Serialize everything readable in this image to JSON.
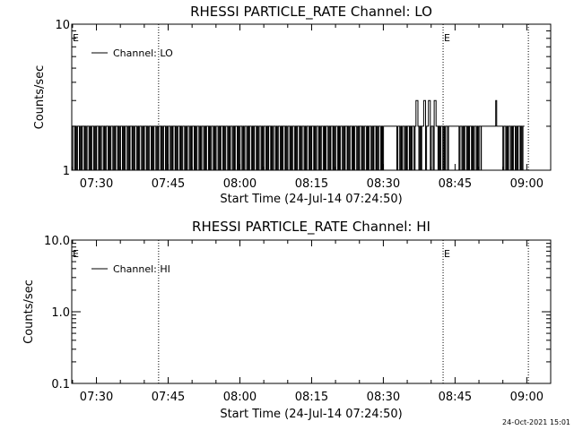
{
  "footer": {
    "timestamp": "24-Oct-2021 15:01"
  },
  "chart_data": [
    {
      "type": "line",
      "title": "RHESSI PARTICLE_RATE Channel: LO",
      "xlabel": "Start Time (24-Jul-14 07:24:50)",
      "ylabel": "Counts/sec",
      "yscale": "log",
      "ylim": [
        1,
        10
      ],
      "yticks": [
        {
          "value": 1,
          "label": "1"
        },
        {
          "value": 10,
          "label": "10"
        }
      ],
      "xlim": [
        "07:24:50",
        "09:05:00"
      ],
      "xticks": [
        "07:30",
        "07:45",
        "08:00",
        "08:15",
        "08:30",
        "08:45",
        "09:00"
      ],
      "legend": {
        "position": "top-left",
        "entries": [
          "Channel: LO"
        ]
      },
      "markers": [
        {
          "time": "07:24:50",
          "label": "E"
        },
        {
          "time": "08:42:30",
          "label": "E"
        }
      ],
      "vlines": [
        "07:43:00",
        "08:42:30",
        "09:00:20"
      ],
      "series": [
        {
          "name": "Channel: LO",
          "pattern": [
            [
              "07:24:50",
              "08:50:30",
              "alternating",
              1,
              2
            ],
            [
              "08:50:30",
              "08:55:00",
              "constant",
              2,
              2
            ],
            [
              "08:55:00",
              "08:59:30",
              "alternating",
              1,
              2
            ]
          ],
          "spikes": [
            [
              "08:37:00",
              3
            ],
            [
              "08:38:30",
              3
            ],
            [
              "08:39:30",
              3
            ],
            [
              "08:40:40",
              3
            ],
            [
              "08:53:30",
              3
            ]
          ],
          "gaps": [
            [
              "08:30:20",
              "08:32:40"
            ],
            [
              "08:43:50",
              "08:45:40"
            ],
            [
              "08:59:30",
              "09:05:00"
            ]
          ]
        }
      ]
    },
    {
      "type": "line",
      "title": "RHESSI PARTICLE_RATE Channel: HI",
      "xlabel": "Start Time (24-Jul-14 07:24:50)",
      "ylabel": "Counts/sec",
      "yscale": "log",
      "ylim": [
        0.1,
        10
      ],
      "yticks": [
        {
          "value": 0.1,
          "label": "0.1"
        },
        {
          "value": 1,
          "label": "1.0"
        },
        {
          "value": 10,
          "label": "10.0"
        }
      ],
      "xlim": [
        "07:24:50",
        "09:05:00"
      ],
      "xticks": [
        "07:30",
        "07:45",
        "08:00",
        "08:15",
        "08:30",
        "08:45",
        "09:00"
      ],
      "legend": {
        "position": "top-left",
        "entries": [
          "Channel: HI"
        ]
      },
      "markers": [
        {
          "time": "07:24:50",
          "label": "E"
        },
        {
          "time": "08:42:30",
          "label": "E"
        }
      ],
      "vlines": [
        "07:43:00",
        "08:42:30",
        "09:00:20"
      ],
      "series": [
        {
          "name": "Channel: HI",
          "values": []
        }
      ]
    }
  ]
}
